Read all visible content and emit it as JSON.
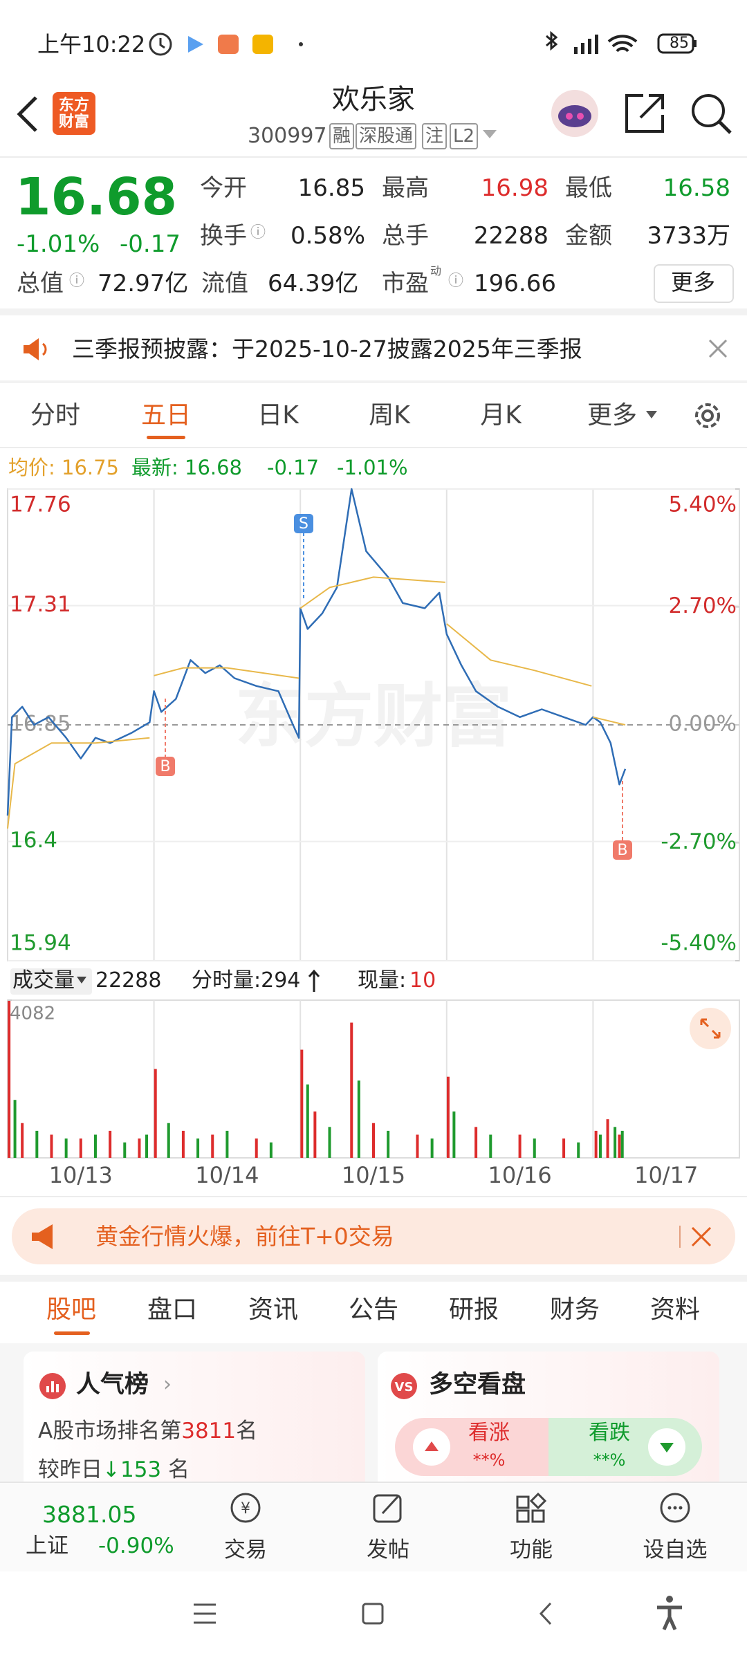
{
  "status": {
    "time": "上午10:22",
    "battery": "85"
  },
  "header": {
    "logo": "东方财富",
    "title": "欢乐家",
    "code": "300997",
    "tags": [
      "融",
      "深股通",
      "注",
      "L2"
    ]
  },
  "quote": {
    "price": "16.68",
    "change_pct": "-1.01%",
    "change": "-0.17",
    "stats": [
      {
        "label": "今开",
        "value": "16.85"
      },
      {
        "label": "最高",
        "value": "16.98"
      },
      {
        "label": "最低",
        "value": "16.58"
      },
      {
        "label": "换手",
        "value": "0.58%"
      },
      {
        "label": "总手",
        "value": "22288"
      },
      {
        "label": "金额",
        "value": "3733万"
      },
      {
        "label": "总值",
        "value": "72.97亿"
      },
      {
        "label": "流值",
        "value": "64.39亿"
      },
      {
        "label": "市盈",
        "sup": "动",
        "value": "196.66"
      }
    ],
    "more": "更多"
  },
  "notice": "三季报预披露：于2025-10-27披露2025年三季报",
  "tabs": [
    "分时",
    "五日",
    "日K",
    "周K",
    "月K",
    "更多"
  ],
  "info": {
    "avg": "均价: 16.75",
    "latest": "最新: 16.68",
    "change": "-0.17",
    "change_pct": "-1.01%"
  },
  "chart_data": {
    "type": "line",
    "categories": [
      "10/13",
      "10/14",
      "10/15",
      "10/16",
      "10/17"
    ],
    "xlim": [
      0,
      5
    ],
    "ylim": [
      15.94,
      17.76
    ],
    "yticks": [
      17.76,
      17.31,
      16.85,
      16.4,
      15.94
    ],
    "y2lim": [
      -5.4,
      5.4
    ],
    "y2ticks": [
      {
        "value": 5.4,
        "label": "5.40%"
      },
      {
        "value": 2.7,
        "label": "2.70%"
      },
      {
        "value": 0,
        "label": "0.00%"
      },
      {
        "value": -2.7,
        "label": "-2.70%"
      },
      {
        "value": -5.4,
        "label": "-5.40%"
      }
    ],
    "grid": true,
    "watermark": "东方财富",
    "series": [
      {
        "color": "#2f6db5",
        "x": [
          0,
          0.03,
          0.1,
          0.18,
          0.28,
          0.4,
          0.5,
          0.6,
          0.7,
          0.85,
          0.97,
          1.0,
          1.05,
          1.15,
          1.25,
          1.35,
          1.45,
          1.55,
          1.7,
          1.85,
          1.95,
          1.99,
          2.0,
          2.05,
          2.15,
          2.25,
          2.35,
          2.45,
          2.6,
          2.7,
          2.85,
          2.95,
          3.0,
          3.1,
          3.2,
          3.35,
          3.5,
          3.65,
          3.8,
          3.95,
          4.0,
          4.05,
          4.12,
          4.18,
          4.22
        ],
        "values": [
          16.5,
          16.88,
          16.92,
          16.85,
          16.88,
          16.8,
          16.72,
          16.8,
          16.78,
          16.82,
          16.86,
          16.98,
          16.9,
          16.95,
          17.1,
          17.05,
          17.08,
          17.03,
          17.0,
          16.98,
          16.85,
          16.8,
          17.3,
          17.22,
          17.28,
          17.38,
          17.76,
          17.52,
          17.42,
          17.32,
          17.3,
          17.36,
          17.2,
          17.08,
          16.98,
          16.92,
          16.88,
          16.91,
          16.88,
          16.85,
          16.88,
          16.86,
          16.78,
          16.62,
          16.68
        ]
      },
      {
        "color": "#e8b84a",
        "x": [
          0,
          0.05,
          0.3,
          0.6,
          0.97,
          0.985,
          1.0,
          1.2,
          1.5,
          1.99,
          1.995,
          2.0,
          2.2,
          2.5,
          2.99,
          2.995,
          3.0,
          3.3,
          3.6,
          3.99,
          3.995,
          4.0,
          4.22
        ],
        "values": [
          16.45,
          16.7,
          16.78,
          16.78,
          16.8,
          null,
          17.04,
          17.07,
          17.07,
          17.03,
          null,
          17.3,
          17.38,
          17.42,
          17.4,
          null,
          17.24,
          17.1,
          17.06,
          17.0,
          null,
          16.88,
          16.85
        ]
      }
    ]
  },
  "volume": {
    "label": "成交量",
    "total": "22288",
    "tick": "分时量:294",
    "now_label": "现量:",
    "now": "10",
    "ylim": [
      0,
      4082
    ],
    "yticks": [
      4082
    ],
    "series": [
      {
        "color": "#dd2c2c",
        "x": [
          0.01,
          0.1,
          0.3,
          0.5,
          0.7,
          0.9,
          1.01,
          1.2,
          1.4,
          1.7,
          2.01,
          2.1,
          2.35,
          2.5,
          2.8,
          3.01,
          3.2,
          3.5,
          3.8,
          4.02,
          4.1,
          4.18
        ],
        "values": [
          4082,
          900,
          600,
          500,
          700,
          500,
          2300,
          700,
          600,
          500,
          2800,
          1200,
          3500,
          900,
          600,
          2100,
          800,
          600,
          500,
          700,
          1000,
          600
        ]
      },
      {
        "color": "#1f9a2e",
        "x": [
          0.05,
          0.2,
          0.4,
          0.6,
          0.8,
          0.95,
          1.1,
          1.3,
          1.5,
          1.8,
          2.05,
          2.2,
          2.4,
          2.6,
          2.9,
          3.05,
          3.3,
          3.6,
          3.9,
          4.05,
          4.15,
          4.2
        ],
        "values": [
          1500,
          700,
          500,
          600,
          400,
          600,
          900,
          500,
          700,
          400,
          1900,
          800,
          2000,
          700,
          500,
          1200,
          600,
          500,
          400,
          600,
          800,
          700
        ]
      }
    ]
  },
  "banner": "黄金行情火爆，前往T+0交易",
  "sub_tabs": [
    "股吧",
    "盘口",
    "资讯",
    "公告",
    "研报",
    "财务",
    "资料"
  ],
  "cards": {
    "popularity": {
      "title": "人气榜",
      "rank_pre": "A股市场排名第",
      "rank": "3811",
      "rank_post": "名",
      "delta_pre": "较昨日",
      "delta": "↓153",
      "delta_post": "名"
    },
    "sentiment": {
      "title": "多空看盘",
      "up": "看涨",
      "up_val": "**%",
      "down": "看跌",
      "down_val": "**%"
    }
  },
  "bottom_nav": {
    "index_value": "3881.05",
    "index_name": "上证",
    "index_change": "-0.90%",
    "items": [
      "交易",
      "发帖",
      "功能",
      "设自选"
    ]
  }
}
